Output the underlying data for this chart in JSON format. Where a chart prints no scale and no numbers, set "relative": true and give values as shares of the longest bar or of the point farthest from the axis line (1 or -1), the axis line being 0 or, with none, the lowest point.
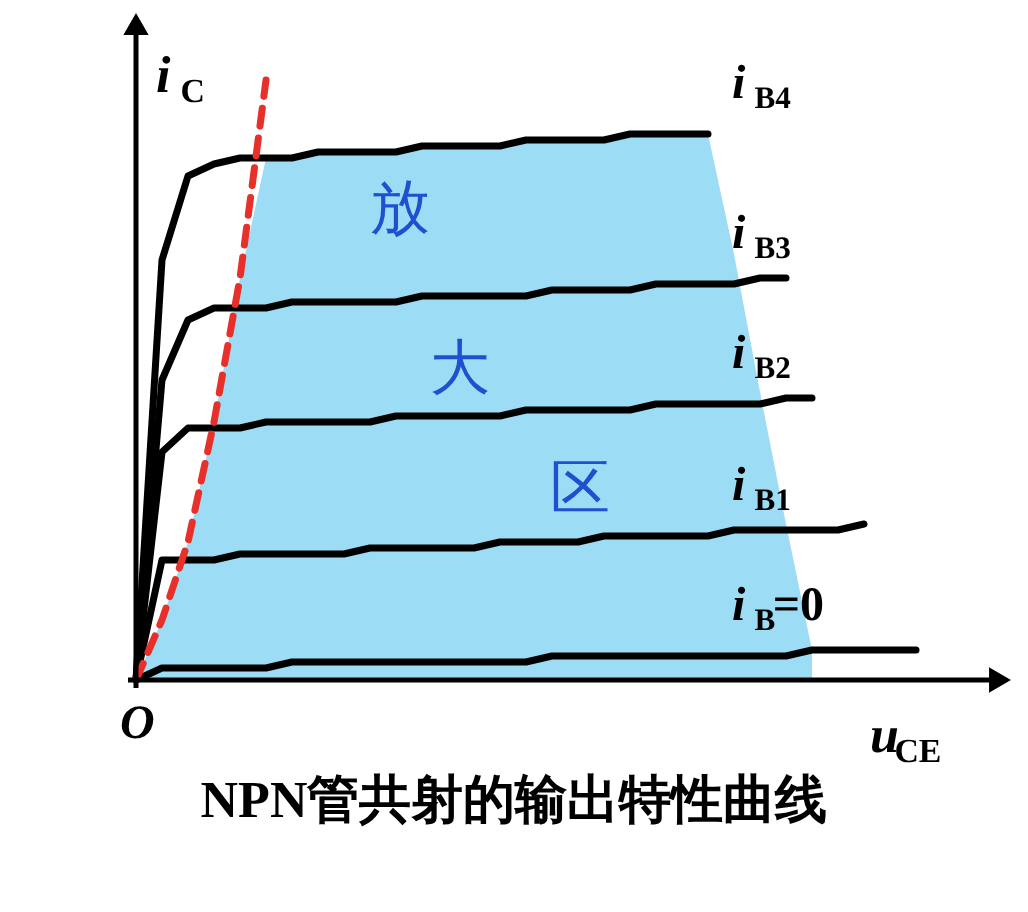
{
  "chart_data": {
    "type": "line",
    "relative": true,
    "title": "NPN管共射的输出特性曲线",
    "xlabel": "u$_{CE}$",
    "ylabel": "i$_{C}$",
    "annotations": [
      "放",
      "大",
      "区",
      "O"
    ],
    "categories": [
      null,
      null,
      null,
      null,
      null,
      null,
      null,
      null,
      null,
      null,
      null,
      null,
      null,
      null,
      null,
      null,
      null,
      null,
      null,
      null,
      null,
      null,
      null,
      null,
      null,
      null,
      null,
      null,
      null,
      null,
      null
    ],
    "series": [
      {
        "type": "area",
        "color": "#9ddcf5",
        "values": [
          0,
          0.1,
          0.23,
          0.43,
          0.67,
          0.87,
          0.87,
          0.88,
          0.88,
          0.88,
          0.88,
          0.89,
          0.89,
          0.89,
          0.89,
          0.9,
          0.9,
          0.9,
          0.9,
          0.91,
          0.91,
          0.91,
          0.91,
          0.71,
          0.48,
          0.26,
          0.05,
          null,
          null,
          null,
          null
        ]
      },
      {
        "name": "i$_{B4}$",
        "color": "#000000",
        "values": [
          0,
          0.7,
          0.84,
          0.86,
          0.87,
          0.87,
          0.87,
          0.88,
          0.88,
          0.88,
          0.88,
          0.89,
          0.89,
          0.89,
          0.89,
          0.9,
          0.9,
          0.9,
          0.9,
          0.91,
          0.91,
          0.91,
          0.91,
          null,
          null,
          null,
          null,
          null,
          null,
          null,
          null
        ]
      },
      {
        "name": "i$_{B3}$",
        "color": "#000000",
        "values": [
          0,
          0.5,
          0.6,
          0.62,
          0.62,
          0.62,
          0.63,
          0.63,
          0.63,
          0.63,
          0.63,
          0.64,
          0.64,
          0.64,
          0.64,
          0.64,
          0.65,
          0.65,
          0.65,
          0.65,
          0.66,
          0.66,
          0.66,
          0.66,
          0.67,
          0.67,
          null,
          null,
          null,
          null,
          null
        ]
      },
      {
        "name": "i$_{B2}$",
        "color": "#000000",
        "values": [
          0,
          0.38,
          0.42,
          0.42,
          0.42,
          0.43,
          0.43,
          0.43,
          0.43,
          0.43,
          0.44,
          0.44,
          0.44,
          0.44,
          0.44,
          0.45,
          0.45,
          0.45,
          0.45,
          0.45,
          0.46,
          0.46,
          0.46,
          0.46,
          0.46,
          0.47,
          0.47,
          null,
          null,
          null,
          null
        ]
      },
      {
        "name": "i$_{B1}$",
        "color": "#000000",
        "values": [
          0,
          0.2,
          0.2,
          0.2,
          0.21,
          0.21,
          0.21,
          0.21,
          0.21,
          0.22,
          0.22,
          0.22,
          0.22,
          0.22,
          0.23,
          0.23,
          0.23,
          0.23,
          0.24,
          0.24,
          0.24,
          0.24,
          0.24,
          0.25,
          0.25,
          0.25,
          0.25,
          0.25,
          0.26,
          null,
          null
        ]
      },
      {
        "name": "i$_{B}$=0",
        "color": "#000000",
        "values": [
          0,
          0.02,
          0.02,
          0.02,
          0.02,
          0.02,
          0.03,
          0.03,
          0.03,
          0.03,
          0.03,
          0.03,
          0.03,
          0.03,
          0.03,
          0.03,
          0.04,
          0.04,
          0.04,
          0.04,
          0.04,
          0.04,
          0.04,
          0.04,
          0.04,
          0.04,
          0.05,
          0.05,
          0.05,
          0.05,
          0.05
        ]
      },
      {
        "color": "#e8302a",
        "line_style": "dashed",
        "values": [
          0,
          0.1,
          0.23,
          0.43,
          0.67,
          1.0,
          null,
          null,
          null,
          null,
          null,
          null,
          null,
          null,
          null,
          null,
          null,
          null,
          null,
          null,
          null,
          null,
          null,
          null,
          null,
          null,
          null,
          null,
          null,
          null,
          null
        ]
      }
    ]
  }
}
